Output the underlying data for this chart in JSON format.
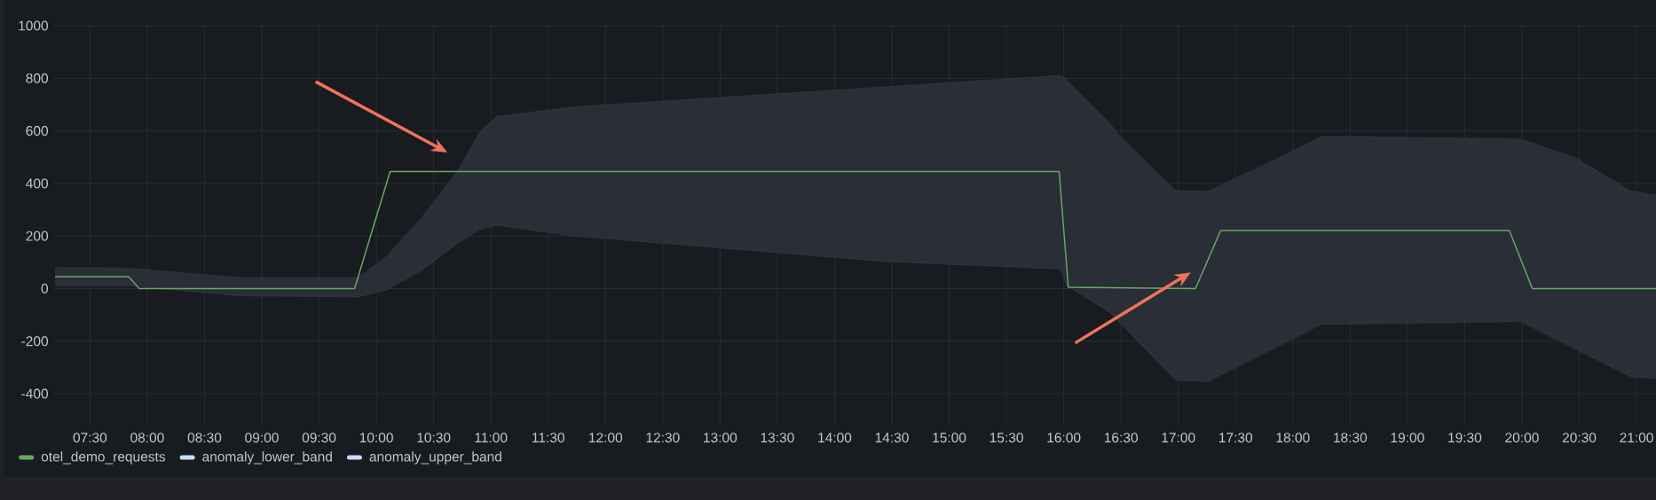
{
  "chart_data": {
    "type": "line",
    "x": [
      7.195,
      7.84,
      7.93,
      9.81,
      10.12,
      15.96,
      16.04,
      17.15,
      17.37,
      19.89,
      20.09,
      21.17
    ],
    "series": [
      {
        "name": "otel_demo_requests",
        "color": "#6aa765",
        "values": [
          45,
          45,
          0,
          0,
          445,
          445,
          5,
          0,
          221,
          221,
          0,
          0
        ]
      },
      {
        "name": "anomaly_lower_band",
        "color": "#c8dcff",
        "x": [
          7.195,
          7.84,
          8.8,
          9.84,
          10.08,
          10.4,
          10.72,
          10.9,
          11.05,
          11.74,
          14.45,
          15.97,
          16.03,
          16.13,
          16.4,
          16.49,
          16.98,
          17.26,
          17.74,
          18.25,
          18.54,
          19.99,
          20.47,
          20.95,
          21.17
        ],
        "values": [
          10,
          10,
          -28,
          -32,
          -7,
          70,
          175,
          224,
          240,
          199,
          102,
          74,
          7,
          -16,
          -91,
          -131,
          -350,
          -354,
          -249,
          -136,
          -135,
          -126,
          -231,
          -336,
          -343
        ]
      },
      {
        "name": "anomaly_upper_band",
        "color": "#c8dcff",
        "x": [
          7.195,
          7.84,
          8.8,
          9.84,
          10.08,
          10.4,
          10.72,
          10.9,
          11.05,
          11.74,
          14.45,
          15.97,
          16.03,
          16.13,
          16.4,
          16.49,
          16.98,
          17.26,
          17.74,
          18.25,
          18.54,
          19.99,
          20.47,
          20.95,
          21.17
        ],
        "values": [
          81,
          78,
          42,
          42,
          119,
          273,
          455,
          595,
          655,
          692,
          768,
          811,
          790,
          748,
          630,
          580,
          373,
          371,
          469,
          578,
          578,
          569,
          497,
          371,
          357
        ],
        "lower": [
          10,
          10,
          -28,
          -32,
          -7,
          70,
          175,
          224,
          240,
          199,
          102,
          74,
          7,
          -16,
          -91,
          -131,
          -350,
          -354,
          -249,
          -136,
          -135,
          -126,
          -231,
          -336,
          -343
        ],
        "upper": [
          81,
          78,
          42,
          42,
          119,
          273,
          455,
          595,
          655,
          692,
          768,
          811,
          790,
          748,
          630,
          580,
          373,
          371,
          469,
          578,
          578,
          569,
          497,
          371,
          357
        ]
      }
    ],
    "xlim": [
      7.195,
      21.17
    ],
    "xticks": [
      {
        "value": 7.5,
        "label": "07:30"
      },
      {
        "value": 8,
        "label": "08:00"
      },
      {
        "value": 8.5,
        "label": "08:30"
      },
      {
        "value": 9,
        "label": "09:00"
      },
      {
        "value": 9.5,
        "label": "09:30"
      },
      {
        "value": 10,
        "label": "10:00"
      },
      {
        "value": 10.5,
        "label": "10:30"
      },
      {
        "value": 11,
        "label": "11:00"
      },
      {
        "value": 11.5,
        "label": "11:30"
      },
      {
        "value": 12,
        "label": "12:00"
      },
      {
        "value": 12.5,
        "label": "12:30"
      },
      {
        "value": 13,
        "label": "13:00"
      },
      {
        "value": 13.5,
        "label": "13:30"
      },
      {
        "value": 14,
        "label": "14:00"
      },
      {
        "value": 14.5,
        "label": "14:30"
      },
      {
        "value": 15,
        "label": "15:00"
      },
      {
        "value": 15.5,
        "label": "15:30"
      },
      {
        "value": 16,
        "label": "16:00"
      },
      {
        "value": 16.5,
        "label": "16:30"
      },
      {
        "value": 17,
        "label": "17:00"
      },
      {
        "value": 17.5,
        "label": "17:30"
      },
      {
        "value": 18,
        "label": "18:00"
      },
      {
        "value": 18.5,
        "label": "18:30"
      },
      {
        "value": 19,
        "label": "19:00"
      },
      {
        "value": 19.5,
        "label": "19:30"
      },
      {
        "value": 20,
        "label": "20:00"
      },
      {
        "value": 20.5,
        "label": "20:30"
      },
      {
        "value": 21,
        "label": "21:00"
      }
    ],
    "ylim": [
      -517,
      1000
    ],
    "yticks": [
      -400,
      -200,
      0,
      200,
      400,
      600,
      800,
      1000
    ],
    "grid": true,
    "legend": "bottom",
    "marker": "none"
  }
}
